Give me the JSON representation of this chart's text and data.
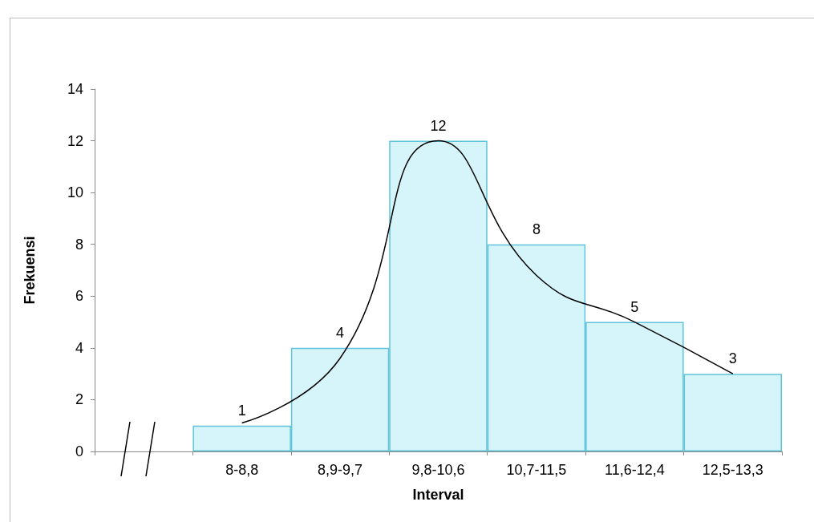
{
  "chart_data": {
    "type": "bar",
    "xlabel": "Interval",
    "ylabel": "Frekuensi",
    "categories": [
      null,
      "8-8,8",
      "8,9-9,7",
      "9,8-10,6",
      "10,7-11,5",
      "11,6-12,4",
      "12,5-13,3"
    ],
    "series": [
      {
        "color": "#d6f5fb",
        "values": [
          null,
          1,
          4,
          12,
          8,
          5,
          3
        ],
        "value_labels": [
          null,
          "1",
          "4",
          "12",
          "8",
          "5",
          "3"
        ]
      },
      {
        "type": "line",
        "color": "#000000",
        "values": [
          null,
          1.1,
          3.6,
          12.0,
          6.8,
          5.0,
          3.0
        ]
      }
    ],
    "ylim": [
      0,
      14
    ],
    "yticks": [
      0,
      2,
      4,
      6,
      8,
      10,
      12,
      14
    ],
    "grid": false,
    "marker": "none"
  }
}
